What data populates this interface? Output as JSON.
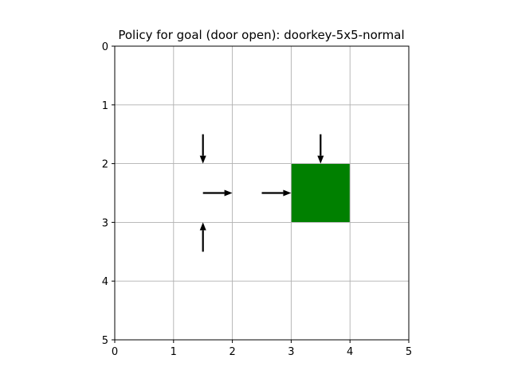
{
  "chart_data": {
    "type": "heatmap",
    "title": "Policy for goal (door open): doorkey-5x5-normal",
    "xlabel": "",
    "ylabel": "",
    "xlim": [
      0,
      5
    ],
    "ylim": [
      5,
      0
    ],
    "y_inverted": true,
    "xticks": [
      0,
      1,
      2,
      3,
      4,
      5
    ],
    "yticks": [
      0,
      1,
      2,
      3,
      4,
      5
    ],
    "grid": true,
    "colors": {
      "grid": "#b0b0b0",
      "arrow": "#000000",
      "goal": "#008000",
      "axes": "#000000"
    },
    "goal_cells": [
      {
        "x": 3,
        "y": 2,
        "width": 1,
        "height": 1
      }
    ],
    "arrows": [
      {
        "x": 1.5,
        "y": 1.5,
        "dx": 0,
        "dy": 0.5,
        "direction": "down"
      },
      {
        "x": 1.5,
        "y": 2.5,
        "dx": 0.5,
        "dy": 0,
        "direction": "right"
      },
      {
        "x": 1.5,
        "y": 3.5,
        "dx": 0,
        "dy": -0.5,
        "direction": "up"
      },
      {
        "x": 2.5,
        "y": 2.5,
        "dx": 0.5,
        "dy": 0,
        "direction": "right"
      },
      {
        "x": 3.5,
        "y": 1.5,
        "dx": 0,
        "dy": 0.5,
        "direction": "down"
      }
    ]
  }
}
